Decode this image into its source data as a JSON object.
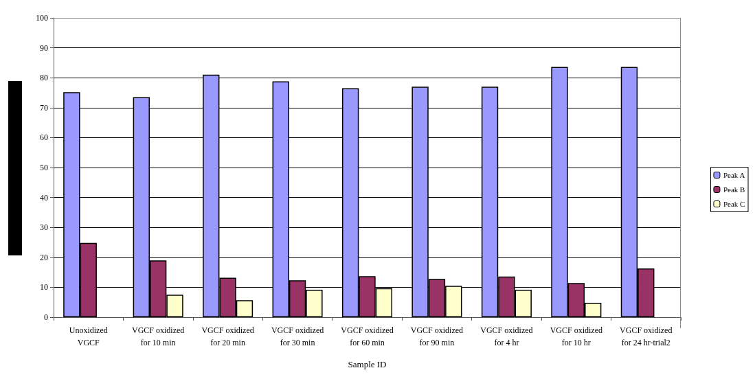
{
  "chart_data": {
    "type": "bar",
    "xlabel": "Sample ID",
    "categories": [
      "Unoxidized\nVGCF",
      "VGCF oxidized\nfor 10 min",
      "VGCF oxidized\nfor 20 min",
      "VGCF oxidized\nfor 30 min",
      "VGCF oxidized\nfor 60 min",
      "VGCF oxidized\nfor 90 min",
      "VGCF oxidized\nfor 4 hr",
      "VGCF oxidized\nfor 10 hr",
      "VGCF oxidized\nfor 24 hr-trial2"
    ],
    "series": [
      {
        "name": "Peak A",
        "color": "#9999ff",
        "values": [
          75.2,
          73.5,
          81,
          78.8,
          76.5,
          77,
          77,
          83.6,
          83.6
        ]
      },
      {
        "name": "Peak B",
        "color": "#993366",
        "values": [
          24.8,
          19,
          13.2,
          12.3,
          13.7,
          12.8,
          13.6,
          11.4,
          16.3
        ]
      },
      {
        "name": "Peak C",
        "color": "#ffffcc",
        "values": [
          null,
          7.5,
          5.7,
          9.2,
          9.7,
          10.5,
          9.2,
          4.8,
          null
        ]
      }
    ],
    "ylim": [
      0,
      100
    ],
    "yticks": [
      0,
      10,
      20,
      30,
      40,
      50,
      60,
      70,
      80,
      90,
      100
    ],
    "grid": "y",
    "legend": "right"
  }
}
